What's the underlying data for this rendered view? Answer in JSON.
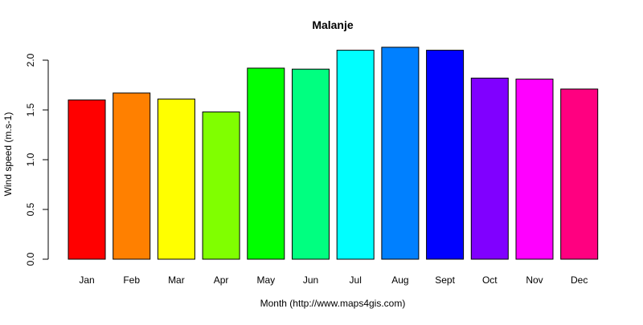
{
  "chart_data": {
    "type": "bar",
    "title": "Malanje",
    "xlabel": "Month (http://www.maps4gis.com)",
    "ylabel": "Wind speed (m.s-1)",
    "categories": [
      "Jan",
      "Feb",
      "Mar",
      "Apr",
      "May",
      "Jun",
      "Jul",
      "Aug",
      "Sept",
      "Oct",
      "Nov",
      "Dec"
    ],
    "values": [
      1.6,
      1.67,
      1.61,
      1.48,
      1.92,
      1.91,
      2.1,
      2.13,
      2.1,
      1.82,
      1.81,
      1.71
    ],
    "colors": [
      "#FF0000",
      "#FF8000",
      "#FFFF00",
      "#80FF00",
      "#00FF00",
      "#00FF80",
      "#00FFFF",
      "#0080FF",
      "#0000FF",
      "#8000FF",
      "#FF00FF",
      "#FF0080"
    ],
    "ylim": [
      0,
      2.0
    ],
    "yticks": [
      "0.0",
      "0.5",
      "1.0",
      "1.5",
      "2.0"
    ],
    "grid": false,
    "legend": "none"
  }
}
